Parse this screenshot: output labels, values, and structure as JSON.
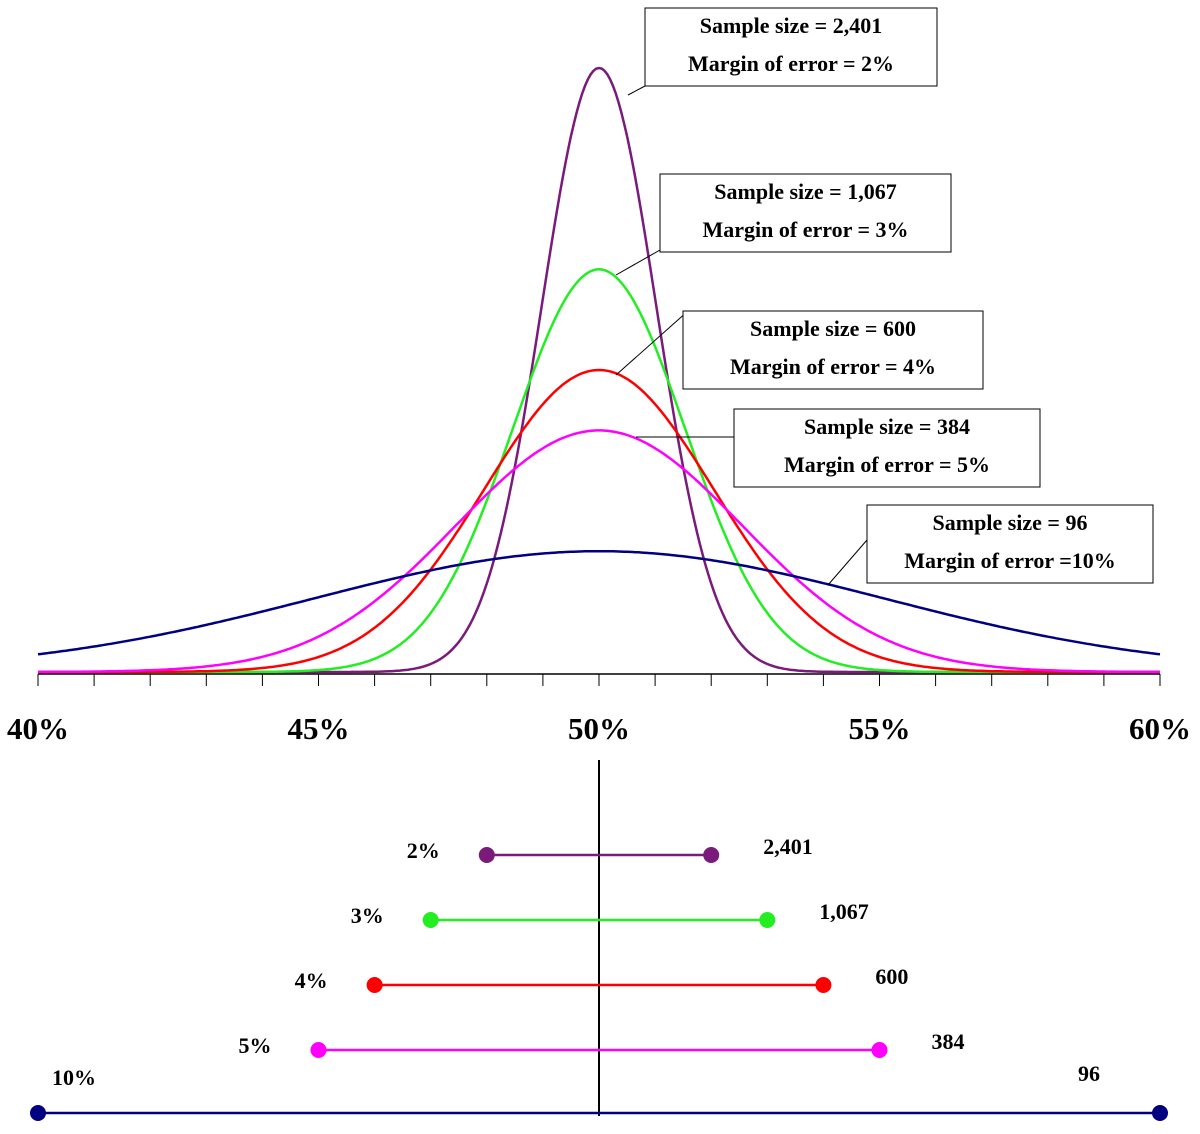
{
  "chart_data": [
    {
      "type": "density",
      "mean": 50,
      "xlim": [
        40,
        60
      ],
      "xticks": [
        {
          "value": 40,
          "label": "40%"
        },
        {
          "value": 45,
          "label": "45%"
        },
        {
          "value": 50,
          "label": "50%"
        },
        {
          "value": 55,
          "label": "55%"
        },
        {
          "value": 60,
          "label": "60%"
        }
      ],
      "xminorticks": [
        41,
        42,
        43,
        44,
        46,
        47,
        48,
        49,
        51,
        52,
        53,
        54,
        56,
        57,
        58,
        59
      ],
      "series": [
        {
          "color": "#7a1a7a",
          "margin": 2,
          "annotation": [
            "Sample size = 2,401",
            "Margin of error = 2%"
          ]
        },
        {
          "color": "#22ee22",
          "margin": 3,
          "annotation": [
            "Sample size = 1,067",
            "Margin of error = 3%"
          ]
        },
        {
          "color": "#ff0000",
          "margin": 4,
          "annotation": [
            "Sample size = 600",
            "Margin of error = 4%"
          ]
        },
        {
          "color": "#ff00ff",
          "margin": 5,
          "annotation": [
            "Sample size = 384",
            "Margin of error = 5%"
          ]
        },
        {
          "color": "#000080",
          "margin": 10,
          "annotation": [
            "Sample size = 96",
            "Margin of error =10%"
          ]
        }
      ]
    },
    {
      "type": "interval",
      "reference": 50,
      "xlim": [
        40,
        60
      ],
      "categories": [
        "2%",
        "3%",
        "4%",
        "5%",
        "10%"
      ],
      "sample_sizes": [
        "2,401",
        "1,067",
        "600",
        "384",
        "96"
      ],
      "low": [
        48,
        47,
        46,
        45,
        40
      ],
      "high": [
        52,
        53,
        54,
        55,
        60
      ],
      "colors": [
        "#7a1a7a",
        "#22ee22",
        "#ff0000",
        "#ff00ff",
        "#000080"
      ]
    }
  ]
}
